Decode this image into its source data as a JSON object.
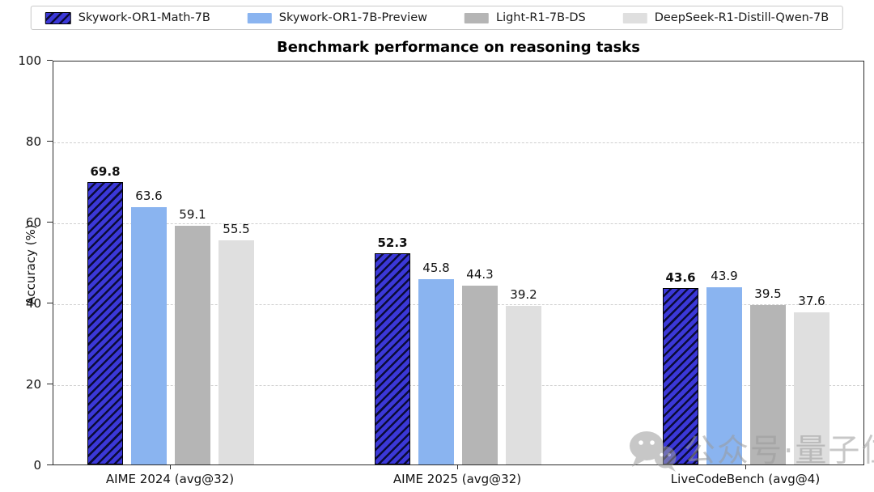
{
  "chart_data": {
    "type": "bar",
    "title": "Benchmark performance on reasoning tasks",
    "xlabel": "",
    "ylabel": "Accuracy (%)",
    "ylim": [
      0,
      100
    ],
    "yticks": [
      0,
      20,
      40,
      60,
      80,
      100
    ],
    "grid": "horizontal dashed at y ticks",
    "legend_position": "top-center",
    "categories": [
      "AIME 2024 (avg@32)",
      "AIME 2025 (avg@32)",
      "LiveCodeBench (avg@4)"
    ],
    "series": [
      {
        "name": "Skywork-OR1-Math-7B",
        "values": [
          69.8,
          52.3,
          43.6
        ],
        "color": "#3b38d8",
        "hatch": "//",
        "hatch_color": "#0b0b38",
        "edge_color": "#000000",
        "bold_value_labels": true
      },
      {
        "name": "Skywork-OR1-7B-Preview",
        "values": [
          63.6,
          45.8,
          43.9
        ],
        "color": "#8ab4f0",
        "bold_value_labels": false
      },
      {
        "name": "Light-R1-7B-DS",
        "values": [
          59.1,
          44.3,
          39.5
        ],
        "color": "#b5b5b5",
        "bold_value_labels": false
      },
      {
        "name": "DeepSeek-R1-Distill-Qwen-7B",
        "values": [
          55.5,
          39.2,
          37.6
        ],
        "color": "#dfdfdf",
        "bold_value_labels": false
      }
    ]
  },
  "watermark": {
    "icon": "wechat-icon",
    "text": "公众号·量子位",
    "color": "#9b9b9b"
  }
}
